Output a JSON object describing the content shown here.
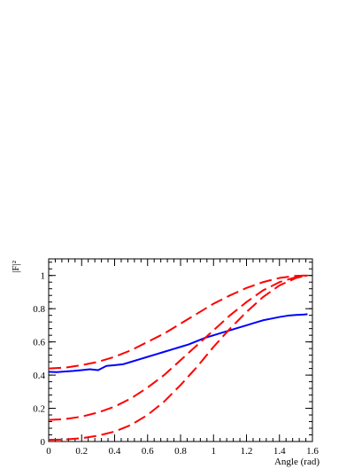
{
  "chart_data": {
    "type": "line",
    "xlabel": "Angle (rad)",
    "ylabel": "|F|²",
    "xlim": [
      0,
      1.6
    ],
    "ylim": [
      0,
      1.1
    ],
    "x_ticks": [
      "0",
      "0.2",
      "0.4",
      "0.6",
      "0.8",
      "1",
      "1.2",
      "1.4",
      "1.6"
    ],
    "y_ticks": [
      "0",
      "0.2",
      "0.4",
      "0.6",
      "0.8",
      "1"
    ],
    "grid": false,
    "colors": {
      "solid": "#0000ff",
      "dashed": "#ff0000"
    },
    "series": [
      {
        "style": "solid",
        "x": [
          0,
          0.05,
          0.1,
          0.15,
          0.2,
          0.25,
          0.3,
          0.35,
          0.4,
          0.45,
          0.5,
          0.55,
          0.6,
          0.65,
          0.7,
          0.75,
          0.8,
          0.85,
          0.9,
          0.95,
          1.0,
          1.05,
          1.1,
          1.15,
          1.2,
          1.25,
          1.3,
          1.35,
          1.4,
          1.45,
          1.5,
          1.55,
          1.57
        ],
        "y": [
          0.42,
          0.418,
          0.422,
          0.425,
          0.43,
          0.435,
          0.43,
          0.455,
          0.46,
          0.465,
          0.48,
          0.495,
          0.51,
          0.525,
          0.54,
          0.555,
          0.57,
          0.585,
          0.605,
          0.625,
          0.64,
          0.655,
          0.67,
          0.685,
          0.7,
          0.715,
          0.73,
          0.74,
          0.75,
          0.758,
          0.762,
          0.765,
          0.767
        ]
      },
      {
        "style": "dashed",
        "x": [
          0,
          0.1,
          0.2,
          0.3,
          0.4,
          0.5,
          0.6,
          0.7,
          0.8,
          0.9,
          1.0,
          1.1,
          1.2,
          1.3,
          1.4,
          1.5,
          1.57
        ],
        "y": [
          0.44,
          0.445,
          0.46,
          0.48,
          0.51,
          0.55,
          0.6,
          0.65,
          0.71,
          0.77,
          0.83,
          0.88,
          0.925,
          0.96,
          0.985,
          0.998,
          1.0
        ]
      },
      {
        "style": "dashed",
        "x": [
          0,
          0.1,
          0.2,
          0.3,
          0.4,
          0.5,
          0.6,
          0.7,
          0.8,
          0.9,
          1.0,
          1.1,
          1.2,
          1.3,
          1.4,
          1.5,
          1.57
        ],
        "y": [
          0.13,
          0.135,
          0.15,
          0.175,
          0.21,
          0.26,
          0.325,
          0.4,
          0.49,
          0.58,
          0.67,
          0.76,
          0.84,
          0.91,
          0.96,
          0.99,
          1.0
        ]
      },
      {
        "style": "dashed",
        "x": [
          0,
          0.1,
          0.2,
          0.3,
          0.4,
          0.5,
          0.6,
          0.7,
          0.8,
          0.9,
          1.0,
          1.1,
          1.2,
          1.3,
          1.4,
          1.5,
          1.57
        ],
        "y": [
          0.01,
          0.012,
          0.02,
          0.035,
          0.06,
          0.1,
          0.16,
          0.24,
          0.34,
          0.45,
          0.57,
          0.68,
          0.78,
          0.87,
          0.94,
          0.985,
          1.0
        ]
      }
    ]
  }
}
